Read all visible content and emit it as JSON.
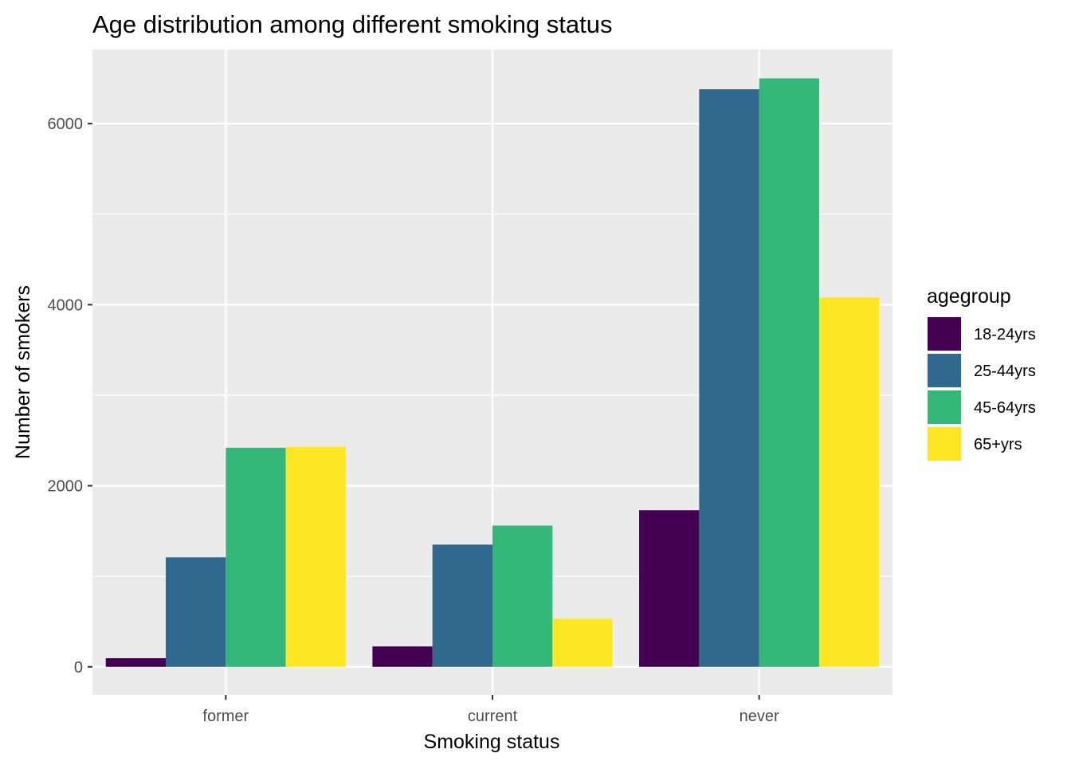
{
  "chart_data": {
    "type": "bar",
    "title": "Age distribution among different smoking status",
    "xlabel": "Smoking status",
    "ylabel": "Number of smokers",
    "categories": [
      "former",
      "current",
      "never"
    ],
    "series": [
      {
        "name": "18-24yrs",
        "color": "#440154",
        "values": [
          95,
          225,
          1730
        ]
      },
      {
        "name": "25-44yrs",
        "color": "#31688E",
        "values": [
          1210,
          1350,
          6380
        ]
      },
      {
        "name": "45-64yrs",
        "color": "#35B779",
        "values": [
          2420,
          1560,
          6500
        ]
      },
      {
        "name": "65+yrs",
        "color": "#FDE725",
        "values": [
          2430,
          530,
          4080
        ]
      }
    ],
    "yticks": [
      0,
      2000,
      4000,
      6000
    ],
    "ylim": [
      -310,
      6820
    ],
    "grid": true,
    "legend": {
      "title": "agegroup",
      "position": "right"
    }
  }
}
